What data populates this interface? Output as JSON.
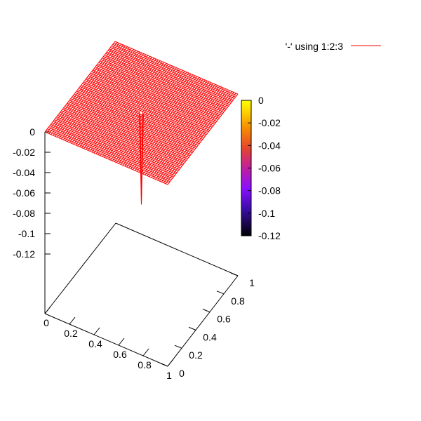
{
  "chart_data": {
    "type": "surface",
    "title": "",
    "legend": {
      "label": "'-' using 1:2:3",
      "color": "#ff0000",
      "placement": "top-right"
    },
    "x_axis": {
      "ticks": [
        "0",
        "0.2",
        "0.4",
        "0.6",
        "0.8",
        "1"
      ],
      "range": [
        0,
        1
      ]
    },
    "y_axis": {
      "ticks": [
        "0",
        "0.2",
        "0.4",
        "0.6",
        "0.8",
        "1"
      ],
      "range": [
        0,
        1
      ]
    },
    "z_axis": {
      "ticks": [
        "0",
        "-0.02",
        "-0.04",
        "-0.06",
        "-0.08",
        "-0.1",
        "-0.12"
      ],
      "range": [
        -0.12,
        0
      ]
    },
    "colorbar": {
      "ticks": [
        "0",
        "-0.02",
        "-0.04",
        "-0.06",
        "-0.08",
        "-0.1",
        "-0.12"
      ],
      "range": [
        -0.12,
        0
      ],
      "palette": [
        "#000000",
        "#3b0ea8",
        "#8a0fff",
        "#c0209c",
        "#e5462c",
        "#f68f00",
        "#ffd400",
        "#ffff00"
      ]
    },
    "surface": {
      "grid_resolution": 60,
      "baseline_z": 0,
      "spike": {
        "x": 0.5,
        "y": 0.5,
        "min_z": -0.09
      },
      "color": "#ff0000"
    }
  }
}
